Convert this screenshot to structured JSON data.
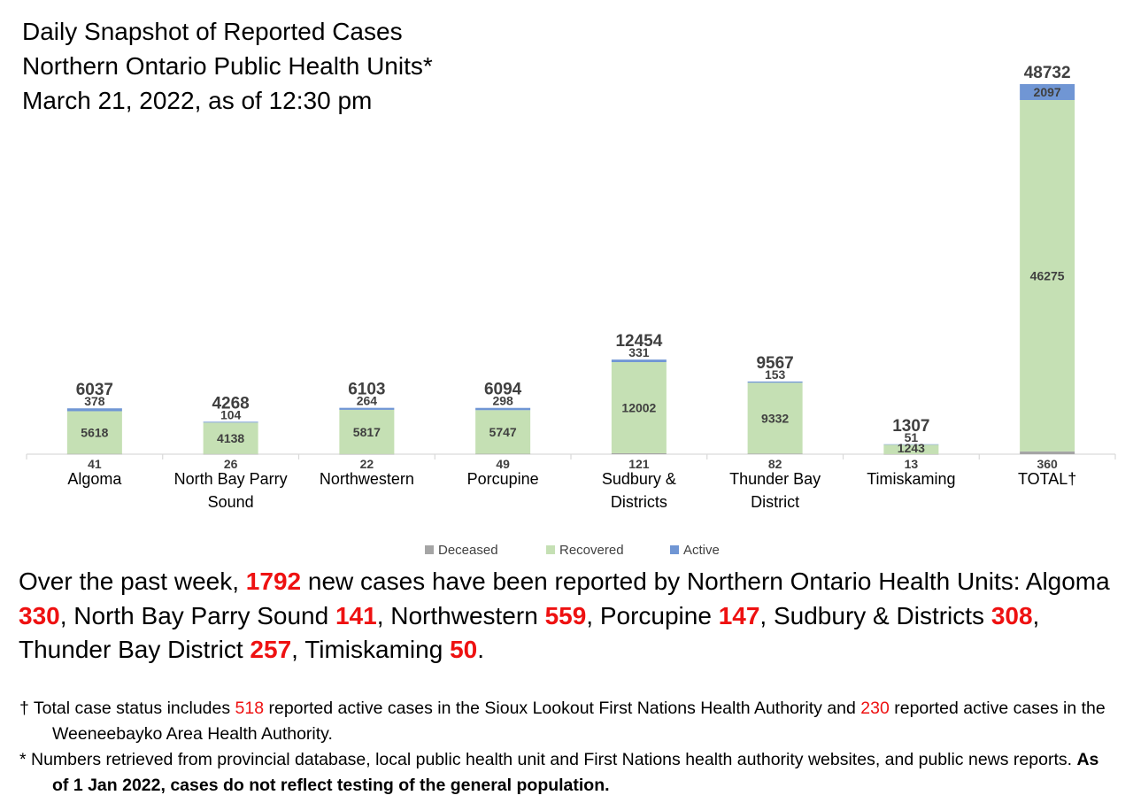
{
  "title": {
    "line1": "Daily Snapshot of Reported Cases",
    "line2": "Northern Ontario Public Health Units*",
    "line3": "March 21, 2022, as of 12:30 pm"
  },
  "colors": {
    "deceased": "#a5a5a5",
    "recovered": "#c5e0b4",
    "active": "#7096d4",
    "highlight": "#ee1111"
  },
  "chart_data": {
    "type": "bar",
    "stacked": true,
    "categories": [
      [
        "Algoma"
      ],
      [
        "North Bay Parry",
        "Sound"
      ],
      [
        "Northwestern"
      ],
      [
        "Porcupine"
      ],
      [
        "Sudbury &",
        "Districts"
      ],
      [
        "Thunder Bay",
        "District"
      ],
      [
        "Timiskaming"
      ],
      [
        "TOTAL†"
      ]
    ],
    "series": [
      {
        "name": "Deceased",
        "color": "#a5a5a5",
        "values": [
          41,
          26,
          22,
          49,
          121,
          82,
          13,
          360
        ]
      },
      {
        "name": "Recovered",
        "color": "#c5e0b4",
        "values": [
          5618,
          4138,
          5817,
          5747,
          12002,
          9332,
          1243,
          46275
        ]
      },
      {
        "name": "Active",
        "color": "#7096d4",
        "values": [
          378,
          104,
          264,
          298,
          331,
          153,
          51,
          2097
        ]
      }
    ],
    "totals": [
      6037,
      4268,
      6103,
      6094,
      12454,
      9567,
      1307,
      48732
    ],
    "ylim": [
      0,
      50000
    ],
    "legend_position": "bottom",
    "grid": false
  },
  "summary": {
    "p1": "Over the past week, ",
    "n_total": "1792",
    "p2": " new cases have been reported by Northern Ontario Health Units: Algoma ",
    "n_algoma": "330",
    "p3": ", North Bay Parry Sound ",
    "n_nbps": "141",
    "p4": ", Northwestern ",
    "n_nw": "559",
    "p5": ", Porcupine ",
    "n_porc": "147",
    "p6": ", Sudbury & Districts ",
    "n_sud": "308",
    "p7": ", Thunder Bay District ",
    "n_tb": "257",
    "p8": ", Timiskaming ",
    "n_tim": "50",
    "p9": "."
  },
  "footnotes": {
    "f1_a": "† Total case status includes ",
    "f1_n1": "518",
    "f1_b": " reported active cases in the Sioux Lookout First Nations Health Authority and ",
    "f1_n2": "230",
    "f1_c": " reported active cases in the Weeneebayko Area Health Authority.",
    "f2_a": "* Numbers retrieved from provincial database, local public health unit and First Nations health authority websites, and public news reports. ",
    "f2_b": "As of 1 Jan 2022, cases do not reflect testing of the general population."
  }
}
